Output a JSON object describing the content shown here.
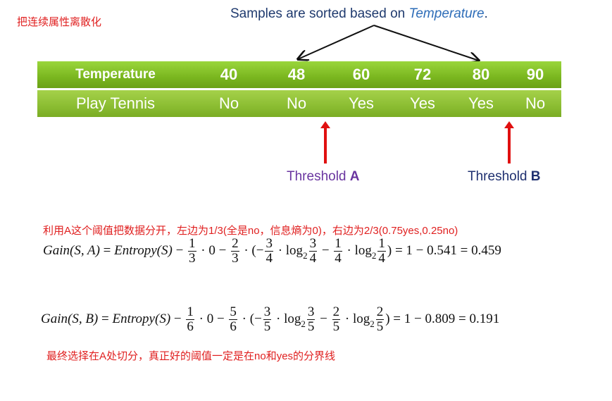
{
  "title_cn": "把连续属性离散化",
  "caption": {
    "prefix": "Samples are sorted based on ",
    "emph": "Temperature",
    "suffix": "."
  },
  "table": {
    "row1_label": "Temperature",
    "row2_label": "Play Tennis",
    "temperatures": [
      "40",
      "48",
      "60",
      "72",
      "80",
      "90"
    ],
    "play": [
      "No",
      "No",
      "Yes",
      "Yes",
      "Yes",
      "No"
    ]
  },
  "threshold_a": {
    "word": "Threshold ",
    "letter": "A"
  },
  "threshold_b": {
    "word": "Threshold ",
    "letter": "B"
  },
  "note1": "利用A这个阈值把数据分开，左边为1/3(全是no，信息熵为0)，右边为2/3(0.75yes,0.25no)",
  "note2": "最终选择在A处切分，真正好的阈值一定是在no和yes的分界线",
  "eq_a": {
    "lhs_gain": "Gain",
    "lhs_args": "(S, A)",
    "eq1": " = ",
    "entropy": "Entropy",
    "entropy_args": "(S)",
    "m1": " − ",
    "f1n": "1",
    "f1d": "3",
    "dot0": " · 0 − ",
    "f2n": "2",
    "f2d": "3",
    "open": " · (−",
    "f3n": "3",
    "f3d": "4",
    "log1": " · log",
    "b1": "2",
    "f4n": "3",
    "f4d": "4",
    "m2": " − ",
    "f5n": "1",
    "f5d": "4",
    "log2": " · log",
    "b2": "2",
    "f6n": "1",
    "f6d": "4",
    "tail": ") = 1 − 0.541 = 0.459"
  },
  "eq_b": {
    "lhs_gain": "Gain",
    "lhs_args": "(S, B)",
    "eq1": " = ",
    "entropy": "Entropy",
    "entropy_args": "(S)",
    "m1": " − ",
    "f1n": "1",
    "f1d": "6",
    "dot0": " · 0 − ",
    "f2n": "5",
    "f2d": "6",
    "open": " · (−",
    "f3n": "3",
    "f3d": "5",
    "log1": " · log",
    "b1": "2",
    "f4n": "3",
    "f4d": "5",
    "m2": " − ",
    "f5n": "2",
    "f5d": "5",
    "log2": " · log",
    "b2": "2",
    "f6n": "2",
    "f6d": "5",
    "tail": ") = 1 − 0.809 = 0.191"
  },
  "colors": {
    "red": "#e02020",
    "green_top": "#7ab61f",
    "green_bottom": "#8bbd32",
    "caption_blue": "#1f3a6e",
    "purple": "#6a35a0",
    "navy": "#1f3070"
  }
}
